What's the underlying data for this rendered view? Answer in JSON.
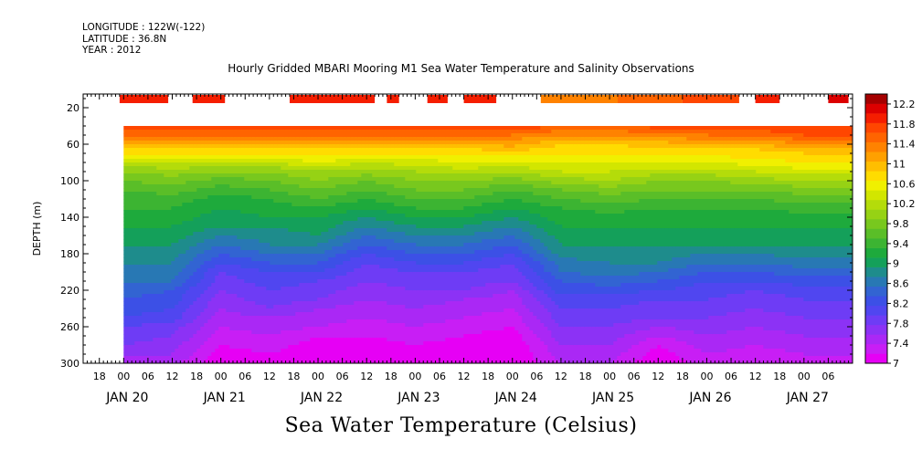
{
  "header": {
    "longitude": "LONGITUDE : 122W(-122)",
    "latitude": "LATITUDE : 36.8N",
    "year": "YEAR : 2012",
    "title": "Hourly Gridded MBARI Mooring M1 Sea Water Temperature and Salinity Observations"
  },
  "footer": {
    "variable_title": "Sea Water Temperature (Celsius)"
  },
  "chart_data": {
    "type": "heatmap",
    "title": "Hourly Gridded MBARI Mooring M1 Sea Water Temperature and Salinity Observations",
    "xlabel": "",
    "ylabel": "DEPTH (m)",
    "zlabel": "Sea Water Temperature (Celsius)",
    "y_reversed": true,
    "xlim": [
      "2012-01-19T14:00",
      "2012-01-27T12:00"
    ],
    "ylim": [
      5,
      300
    ],
    "data_start": "2012-01-20T00:00",
    "data_top_depth": 40,
    "x_ticks": [
      {
        "label": "18",
        "time": "2012-01-19T18:00"
      },
      {
        "label": "00",
        "time": "2012-01-20T00:00"
      },
      {
        "label": "06",
        "time": "2012-01-20T06:00"
      },
      {
        "label": "12",
        "time": "2012-01-20T12:00"
      },
      {
        "label": "18",
        "time": "2012-01-20T18:00"
      },
      {
        "label": "00",
        "time": "2012-01-21T00:00"
      },
      {
        "label": "06",
        "time": "2012-01-21T06:00"
      },
      {
        "label": "12",
        "time": "2012-01-21T12:00"
      },
      {
        "label": "18",
        "time": "2012-01-21T18:00"
      },
      {
        "label": "00",
        "time": "2012-01-22T00:00"
      },
      {
        "label": "06",
        "time": "2012-01-22T06:00"
      },
      {
        "label": "12",
        "time": "2012-01-22T12:00"
      },
      {
        "label": "18",
        "time": "2012-01-22T18:00"
      },
      {
        "label": "00",
        "time": "2012-01-23T00:00"
      },
      {
        "label": "06",
        "time": "2012-01-23T06:00"
      },
      {
        "label": "12",
        "time": "2012-01-23T12:00"
      },
      {
        "label": "18",
        "time": "2012-01-23T18:00"
      },
      {
        "label": "00",
        "time": "2012-01-24T00:00"
      },
      {
        "label": "06",
        "time": "2012-01-24T06:00"
      },
      {
        "label": "12",
        "time": "2012-01-24T12:00"
      },
      {
        "label": "18",
        "time": "2012-01-24T18:00"
      },
      {
        "label": "00",
        "time": "2012-01-25T00:00"
      },
      {
        "label": "06",
        "time": "2012-01-25T06:00"
      },
      {
        "label": "12",
        "time": "2012-01-25T12:00"
      },
      {
        "label": "18",
        "time": "2012-01-25T18:00"
      },
      {
        "label": "00",
        "time": "2012-01-26T00:00"
      },
      {
        "label": "06",
        "time": "2012-01-26T06:00"
      },
      {
        "label": "12",
        "time": "2012-01-26T12:00"
      },
      {
        "label": "18",
        "time": "2012-01-26T18:00"
      },
      {
        "label": "00",
        "time": "2012-01-27T00:00"
      },
      {
        "label": "06",
        "time": "2012-01-27T06:00"
      }
    ],
    "day_labels": [
      {
        "label": "JAN 20",
        "time": "2012-01-20T00:00"
      },
      {
        "label": "JAN 21",
        "time": "2012-01-21T00:00"
      },
      {
        "label": "JAN 22",
        "time": "2012-01-22T00:00"
      },
      {
        "label": "JAN 23",
        "time": "2012-01-23T00:00"
      },
      {
        "label": "JAN 24",
        "time": "2012-01-24T00:00"
      },
      {
        "label": "JAN 25",
        "time": "2012-01-25T00:00"
      },
      {
        "label": "JAN 26",
        "time": "2012-01-26T00:00"
      },
      {
        "label": "JAN 27",
        "time": "2012-01-27T00:00"
      }
    ],
    "y_ticks": [
      20,
      60,
      100,
      140,
      180,
      220,
      260,
      300
    ],
    "colorbar": {
      "levels": [
        7,
        7.2,
        7.4,
        7.6,
        7.8,
        8,
        8.2,
        8.4,
        8.6,
        8.8,
        9,
        9.2,
        9.4,
        9.6,
        9.8,
        10,
        10.2,
        10.4,
        10.6,
        10.8,
        11,
        11.2,
        11.4,
        11.6,
        11.8,
        12,
        12.2,
        12.4
      ],
      "labels": [
        7,
        7.4,
        7.8,
        8.2,
        8.6,
        9,
        9.4,
        9.8,
        10.2,
        10.6,
        11,
        11.4,
        11.8,
        12.2
      ],
      "colors": [
        "#e600f5",
        "#c81ef5",
        "#aa28f5",
        "#8c32f5",
        "#6e3cf5",
        "#5046f0",
        "#3c50e6",
        "#3264d2",
        "#2878b4",
        "#1e8c8c",
        "#14a05a",
        "#1eaa3c",
        "#3cb432",
        "#5abe28",
        "#78c81e",
        "#96d214",
        "#b4dc0a",
        "#d2e600",
        "#f0f000",
        "#ffdc00",
        "#ffbe00",
        "#ffa000",
        "#ff8200",
        "#ff6400",
        "#ff4600",
        "#f51e00",
        "#dc0000",
        "#a50000"
      ]
    },
    "surface_bars": [
      {
        "start": "2012-01-19T23:00",
        "end": "2012-01-20T11:00",
        "value": 12.0
      },
      {
        "start": "2012-01-20T17:00",
        "end": "2012-01-21T01:00",
        "value": 12.0
      },
      {
        "start": "2012-01-21T17:00",
        "end": "2012-01-22T14:00",
        "value": 12.0
      },
      {
        "start": "2012-01-22T17:00",
        "end": "2012-01-22T20:00",
        "value": 12.0
      },
      {
        "start": "2012-01-23T03:00",
        "end": "2012-01-23T08:00",
        "value": 12.0
      },
      {
        "start": "2012-01-23T12:00",
        "end": "2012-01-23T20:00",
        "value": 12.0
      },
      {
        "start": "2012-01-24T07:00",
        "end": "2012-01-25T02:00",
        "value": 11.4
      },
      {
        "start": "2012-01-25T02:00",
        "end": "2012-01-25T18:00",
        "value": 11.6
      },
      {
        "start": "2012-01-25T18:00",
        "end": "2012-01-26T08:00",
        "value": 11.8
      },
      {
        "start": "2012-01-26T12:00",
        "end": "2012-01-26T18:00",
        "value": 12.0
      },
      {
        "start": "2012-01-27T06:00",
        "end": "2012-01-27T11:00",
        "value": 12.3
      }
    ],
    "profile_depths": [
      40,
      45,
      50,
      55,
      60,
      65,
      70,
      80,
      90,
      100,
      110,
      120,
      130,
      140,
      150,
      160,
      170,
      180,
      190,
      200,
      210,
      220,
      230,
      240,
      250,
      260,
      270,
      280,
      290,
      300
    ],
    "profile_times": [
      "2012-01-20T00:00",
      "2012-01-20T12:00",
      "2012-01-21T00:00",
      "2012-01-21T12:00",
      "2012-01-22T00:00",
      "2012-01-22T12:00",
      "2012-01-23T00:00",
      "2012-01-23T12:00",
      "2012-01-24T00:00",
      "2012-01-24T12:00",
      "2012-01-25T00:00",
      "2012-01-25T12:00",
      "2012-01-26T00:00",
      "2012-01-26T12:00",
      "2012-01-27T00:00",
      "2012-01-27T12:00"
    ],
    "profiles": [
      [
        12.0,
        11.8,
        11.6,
        11.4,
        11.2,
        11.0,
        10.8,
        10.4,
        10.0,
        9.8,
        9.6,
        9.5,
        9.4,
        9.3,
        9.2,
        9.1,
        9.0,
        8.9,
        8.8,
        8.7,
        8.6,
        8.5,
        8.4,
        8.3,
        8.2,
        8.0,
        7.9,
        7.8,
        7.6,
        7.5
      ],
      [
        12.0,
        11.8,
        11.6,
        11.4,
        11.2,
        11.0,
        10.8,
        10.4,
        10.1,
        9.9,
        9.7,
        9.5,
        9.4,
        9.3,
        9.2,
        9.1,
        9.0,
        8.9,
        8.8,
        8.7,
        8.6,
        8.4,
        8.3,
        8.2,
        8.1,
        7.9,
        7.8,
        7.7,
        7.6,
        7.5
      ],
      [
        12.0,
        11.8,
        11.6,
        11.4,
        11.2,
        11.0,
        10.8,
        10.4,
        10.0,
        9.7,
        9.5,
        9.3,
        9.2,
        9.1,
        9.0,
        8.8,
        8.6,
        8.4,
        8.2,
        8.0,
        7.9,
        7.8,
        7.7,
        7.6,
        7.5,
        7.4,
        7.3,
        7.2,
        7.1,
        7.0
      ],
      [
        12.0,
        11.8,
        11.6,
        11.4,
        11.2,
        11.0,
        10.8,
        10.4,
        10.0,
        9.8,
        9.6,
        9.4,
        9.3,
        9.2,
        9.0,
        8.9,
        8.8,
        8.6,
        8.4,
        8.2,
        8.1,
        8.0,
        7.9,
        7.8,
        7.6,
        7.5,
        7.4,
        7.3,
        7.2,
        7.1
      ],
      [
        12.0,
        11.8,
        11.6,
        11.4,
        11.2,
        11.0,
        10.9,
        10.6,
        10.2,
        10.0,
        9.8,
        9.6,
        9.4,
        9.2,
        9.1,
        9.0,
        8.8,
        8.6,
        8.4,
        8.2,
        8.0,
        7.9,
        7.8,
        7.6,
        7.5,
        7.4,
        7.2,
        7.1,
        7.0,
        7.0
      ],
      [
        12.0,
        11.8,
        11.6,
        11.4,
        11.2,
        11.0,
        10.8,
        10.4,
        10.1,
        9.8,
        9.6,
        9.4,
        9.2,
        9.0,
        8.8,
        8.6,
        8.4,
        8.2,
        8.0,
        7.9,
        7.8,
        7.7,
        7.6,
        7.5,
        7.4,
        7.3,
        7.2,
        7.1,
        7.0,
        7.0
      ],
      [
        12.0,
        11.8,
        11.6,
        11.4,
        11.2,
        11.0,
        10.8,
        10.5,
        10.2,
        10.0,
        9.8,
        9.6,
        9.4,
        9.2,
        9.0,
        8.8,
        8.6,
        8.4,
        8.2,
        8.0,
        7.9,
        7.8,
        7.7,
        7.6,
        7.5,
        7.4,
        7.3,
        7.2,
        7.1,
        7.0
      ],
      [
        12.0,
        11.8,
        11.6,
        11.4,
        11.2,
        11.0,
        10.8,
        10.6,
        10.3,
        10.0,
        9.8,
        9.6,
        9.4,
        9.2,
        9.0,
        8.8,
        8.6,
        8.4,
        8.2,
        8.0,
        7.9,
        7.8,
        7.6,
        7.5,
        7.4,
        7.3,
        7.2,
        7.1,
        7.0,
        7.0
      ],
      [
        12.0,
        11.8,
        11.6,
        11.4,
        11.3,
        11.1,
        10.9,
        10.6,
        10.2,
        9.9,
        9.6,
        9.4,
        9.2,
        9.0,
        8.8,
        8.6,
        8.4,
        8.2,
        8.0,
        7.9,
        7.8,
        7.6,
        7.5,
        7.4,
        7.3,
        7.2,
        7.1,
        7.0,
        7.0,
        7.0
      ],
      [
        11.8,
        11.6,
        11.4,
        11.2,
        11.0,
        10.9,
        10.8,
        10.6,
        10.4,
        10.1,
        9.8,
        9.6,
        9.4,
        9.3,
        9.2,
        9.1,
        9.0,
        8.9,
        8.7,
        8.6,
        8.4,
        8.3,
        8.1,
        8.0,
        7.9,
        7.8,
        7.7,
        7.6,
        7.5,
        7.4
      ],
      [
        11.8,
        11.6,
        11.4,
        11.2,
        11.0,
        10.9,
        10.8,
        10.6,
        10.4,
        10.2,
        9.9,
        9.7,
        9.5,
        9.3,
        9.2,
        9.1,
        9.0,
        8.9,
        8.8,
        8.7,
        8.5,
        8.3,
        8.1,
        8.0,
        7.9,
        7.8,
        7.7,
        7.6,
        7.5,
        7.4
      ],
      [
        11.9,
        11.7,
        11.5,
        11.3,
        11.1,
        11.0,
        10.8,
        10.6,
        10.3,
        10.0,
        9.8,
        9.6,
        9.4,
        9.3,
        9.2,
        9.1,
        9.0,
        8.9,
        8.8,
        8.6,
        8.4,
        8.2,
        8.0,
        7.9,
        7.8,
        7.6,
        7.4,
        7.2,
        7.1,
        7.0
      ],
      [
        12.0,
        11.8,
        11.6,
        11.4,
        11.2,
        11.0,
        10.9,
        10.6,
        10.3,
        10.0,
        9.8,
        9.6,
        9.4,
        9.3,
        9.2,
        9.1,
        9.0,
        8.8,
        8.6,
        8.4,
        8.2,
        8.1,
        8.0,
        7.9,
        7.8,
        7.7,
        7.6,
        7.5,
        7.4,
        7.3
      ],
      [
        12.0,
        11.8,
        11.6,
        11.4,
        11.2,
        11.0,
        10.9,
        10.7,
        10.4,
        10.1,
        9.8,
        9.6,
        9.4,
        9.3,
        9.2,
        9.1,
        9.0,
        8.8,
        8.6,
        8.4,
        8.2,
        8.0,
        7.9,
        7.8,
        7.7,
        7.6,
        7.5,
        7.4,
        7.3,
        7.2
      ],
      [
        12.0,
        11.9,
        11.8,
        11.6,
        11.4,
        11.2,
        11.0,
        10.8,
        10.5,
        10.2,
        9.9,
        9.7,
        9.5,
        9.3,
        9.2,
        9.1,
        9.0,
        8.9,
        8.7,
        8.5,
        8.3,
        8.1,
        8.0,
        7.9,
        7.8,
        7.7,
        7.6,
        7.5,
        7.4,
        7.3
      ],
      [
        12.0,
        11.9,
        11.8,
        11.6,
        11.4,
        11.2,
        11.0,
        10.8,
        10.5,
        10.2,
        9.9,
        9.7,
        9.5,
        9.3,
        9.2,
        9.1,
        9.0,
        8.9,
        8.7,
        8.5,
        8.3,
        8.1,
        8.0,
        7.9,
        7.8,
        7.7,
        7.6,
        7.5,
        7.4,
        7.3
      ]
    ]
  }
}
